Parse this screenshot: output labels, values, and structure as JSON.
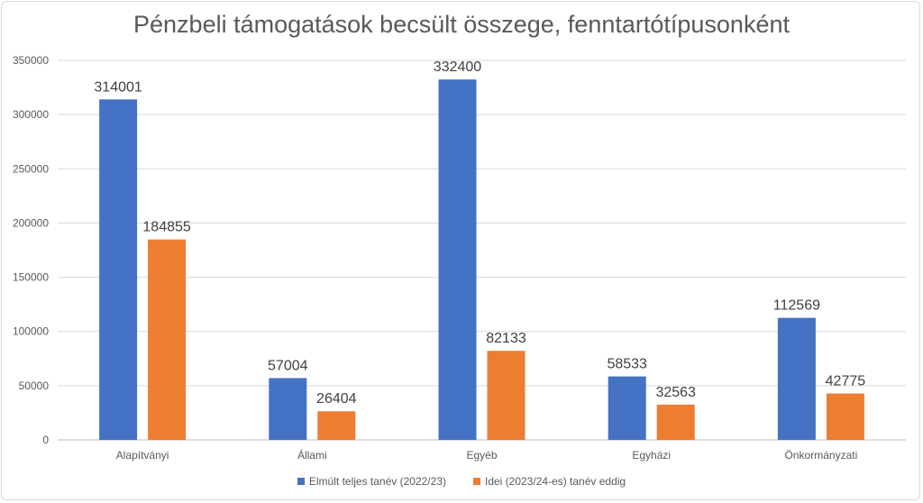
{
  "chart_data": {
    "type": "bar",
    "title": "Pénzbeli támogatások becsült összege, fenntartótípusonként",
    "categories": [
      "Alapítványi",
      "Állami",
      "Egyéb",
      "Egyházi",
      "Önkormányzati"
    ],
    "series": [
      {
        "name": "Elmúlt teljes tanév (2022/23)",
        "color": "#4472c4",
        "values": [
          314001,
          57004,
          332400,
          58533,
          112569
        ]
      },
      {
        "name": "Idei (2023/24-es) tanév eddig",
        "color": "#ed7d31",
        "values": [
          184855,
          26404,
          82133,
          32563,
          42775
        ]
      }
    ],
    "yticks": [
      0,
      50000,
      100000,
      150000,
      200000,
      250000,
      300000,
      350000
    ],
    "ylim": [
      0,
      350000
    ],
    "grid": true,
    "legend_position": "bottom",
    "data_labels": true
  }
}
